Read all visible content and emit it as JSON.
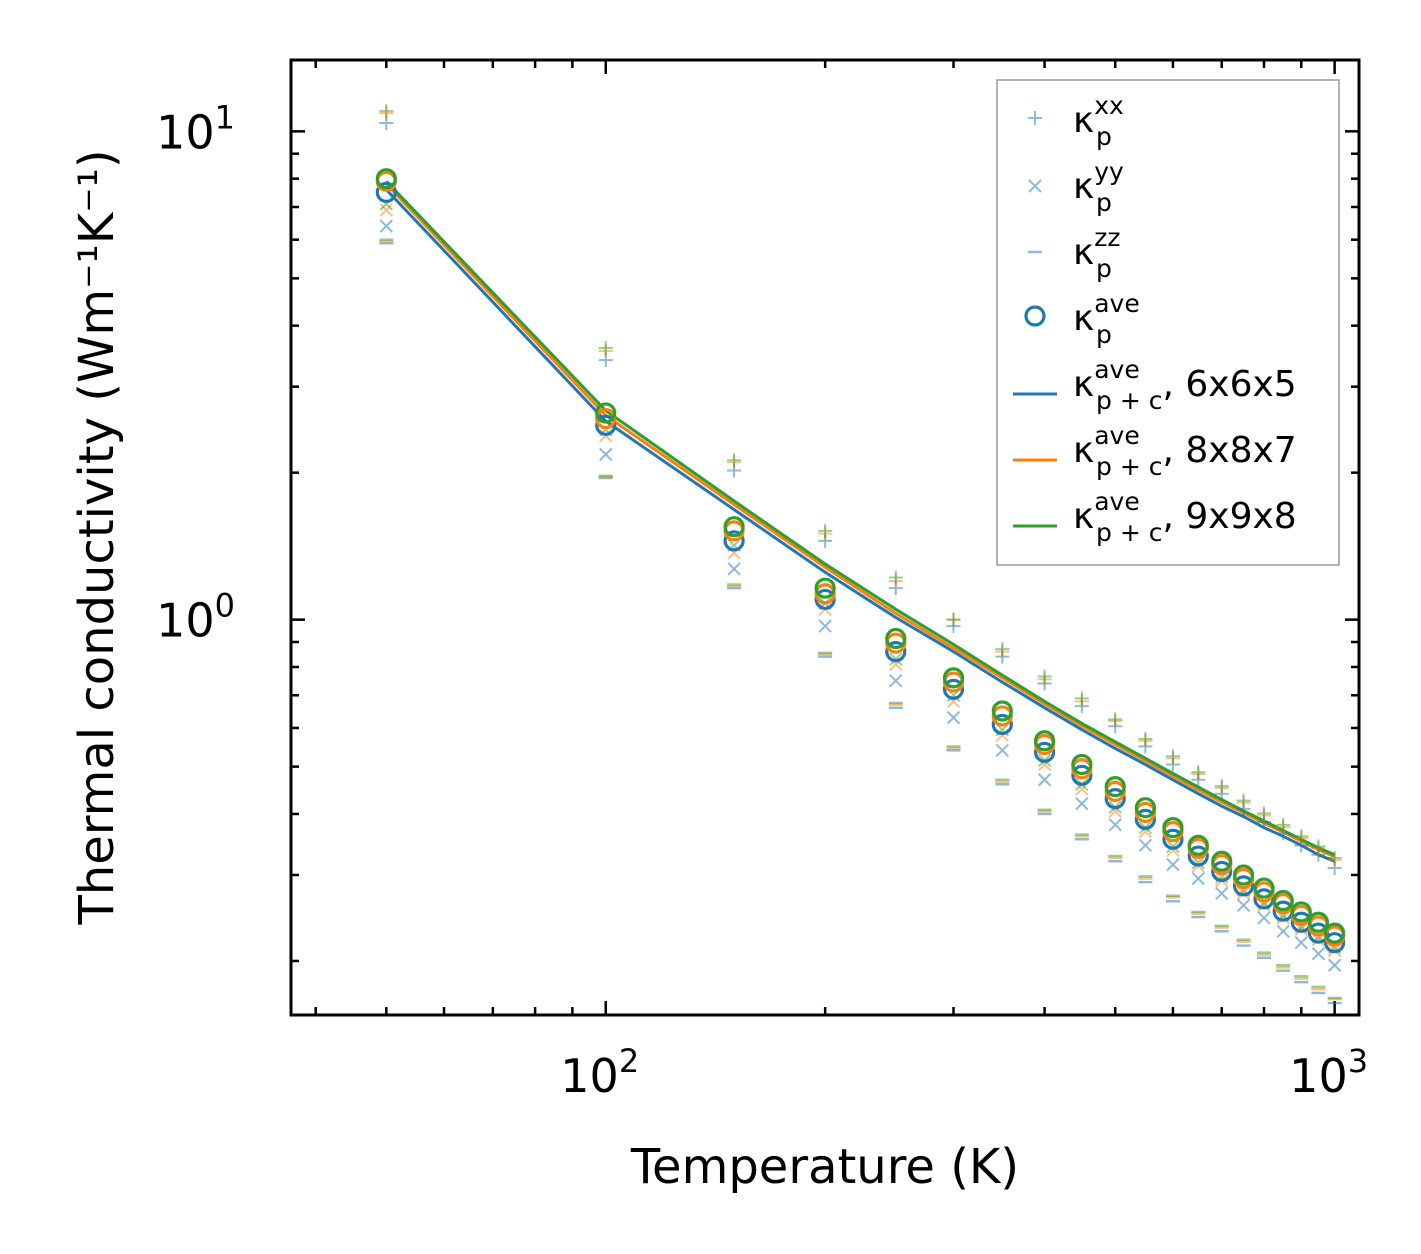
{
  "chart_data": {
    "type": "scatter",
    "xscale": "log",
    "yscale": "log",
    "xlim": [
      37,
      1080
    ],
    "ylim": [
      0.155,
      14
    ],
    "xlabel": "Temperature (K)",
    "ylabel": "Thermal conductivity (Wm⁻¹K⁻¹)",
    "xticks": [
      {
        "value": 100,
        "base": "10",
        "exp": "2"
      },
      {
        "value": 1000,
        "base": "10",
        "exp": "3"
      }
    ],
    "yticks": [
      {
        "value": 1,
        "base": "10",
        "exp": "0"
      },
      {
        "value": 10,
        "base": "10",
        "exp": "1"
      }
    ],
    "x": [
      50,
      100,
      150,
      200,
      250,
      300,
      350,
      400,
      450,
      500,
      550,
      600,
      650,
      700,
      750,
      800,
      850,
      900,
      950,
      1000
    ],
    "supercells": [
      {
        "name": "6x6x5",
        "color": "#1f77b4",
        "kxx": [
          10.4,
          3.4,
          2.02,
          1.45,
          1.16,
          0.97,
          0.84,
          0.74,
          0.665,
          0.605,
          0.55,
          0.505,
          0.47,
          0.44,
          0.41,
          0.385,
          0.365,
          0.345,
          0.33,
          0.31
        ],
        "kyy": [
          6.4,
          2.18,
          1.27,
          0.97,
          0.75,
          0.63,
          0.54,
          0.47,
          0.42,
          0.38,
          0.345,
          0.315,
          0.295,
          0.275,
          0.26,
          0.245,
          0.23,
          0.218,
          0.207,
          0.196
        ],
        "kzz": [
          5.9,
          1.95,
          1.16,
          0.84,
          0.66,
          0.54,
          0.46,
          0.4,
          0.355,
          0.32,
          0.29,
          0.265,
          0.246,
          0.23,
          0.215,
          0.203,
          0.191,
          0.181,
          0.172,
          0.164
        ],
        "kave": [
          7.5,
          2.5,
          1.45,
          1.1,
          0.86,
          0.72,
          0.61,
          0.535,
          0.48,
          0.43,
          0.39,
          0.355,
          0.328,
          0.305,
          0.285,
          0.268,
          0.253,
          0.24,
          0.228,
          0.218
        ],
        "kpc": [
          7.6,
          2.55,
          1.68,
          1.25,
          1.01,
          0.86,
          0.745,
          0.66,
          0.595,
          0.545,
          0.505,
          0.47,
          0.44,
          0.415,
          0.395,
          0.375,
          0.36,
          0.345,
          0.33,
          0.32
        ]
      },
      {
        "name": "8x8x7",
        "color": "#ff7f0e",
        "kxx": [
          10.9,
          3.55,
          2.1,
          1.5,
          1.2,
          1.0,
          0.86,
          0.755,
          0.68,
          0.62,
          0.565,
          0.52,
          0.483,
          0.452,
          0.422,
          0.397,
          0.376,
          0.357,
          0.34,
          0.322
        ],
        "kyy": [
          6.9,
          2.38,
          1.37,
          1.05,
          0.81,
          0.68,
          0.58,
          0.505,
          0.45,
          0.405,
          0.368,
          0.337,
          0.313,
          0.292,
          0.275,
          0.26,
          0.245,
          0.232,
          0.221,
          0.21
        ],
        "kzz": [
          5.95,
          1.96,
          1.17,
          0.85,
          0.67,
          0.545,
          0.465,
          0.405,
          0.36,
          0.325,
          0.295,
          0.27,
          0.25,
          0.234,
          0.219,
          0.206,
          0.194,
          0.184,
          0.175,
          0.167
        ],
        "kave": [
          7.9,
          2.58,
          1.52,
          1.13,
          0.895,
          0.745,
          0.635,
          0.555,
          0.495,
          0.445,
          0.403,
          0.368,
          0.34,
          0.315,
          0.295,
          0.277,
          0.262,
          0.248,
          0.236,
          0.225
        ],
        "kpc": [
          7.8,
          2.62,
          1.72,
          1.28,
          1.03,
          0.875,
          0.76,
          0.672,
          0.606,
          0.555,
          0.514,
          0.478,
          0.448,
          0.423,
          0.402,
          0.383,
          0.367,
          0.352,
          0.338,
          0.327
        ]
      },
      {
        "name": "9x9x8",
        "color": "#2ca02c",
        "kxx": [
          11.0,
          3.6,
          2.12,
          1.52,
          1.22,
          1.0,
          0.87,
          0.765,
          0.69,
          0.625,
          0.57,
          0.525,
          0.487,
          0.456,
          0.426,
          0.401,
          0.38,
          0.36,
          0.343,
          0.325
        ],
        "kyy": [
          7.1,
          2.45,
          1.42,
          1.08,
          0.83,
          0.7,
          0.595,
          0.515,
          0.46,
          0.413,
          0.375,
          0.343,
          0.318,
          0.297,
          0.279,
          0.263,
          0.248,
          0.235,
          0.224,
          0.213
        ],
        "kzz": [
          6.0,
          1.97,
          1.18,
          0.855,
          0.675,
          0.55,
          0.47,
          0.408,
          0.363,
          0.328,
          0.298,
          0.272,
          0.252,
          0.236,
          0.221,
          0.208,
          0.196,
          0.186,
          0.177,
          0.168
        ],
        "kave": [
          8.0,
          2.65,
          1.55,
          1.16,
          0.915,
          0.76,
          0.65,
          0.565,
          0.505,
          0.455,
          0.412,
          0.375,
          0.345,
          0.32,
          0.3,
          0.282,
          0.266,
          0.252,
          0.24,
          0.228
        ],
        "kpc": [
          7.9,
          2.68,
          1.75,
          1.3,
          1.05,
          0.89,
          0.77,
          0.68,
          0.613,
          0.562,
          0.52,
          0.484,
          0.454,
          0.428,
          0.406,
          0.387,
          0.37,
          0.355,
          0.341,
          0.33
        ]
      }
    ],
    "legend": {
      "position": "upper-right",
      "entries": [
        {
          "kind": "plus",
          "sym": "κ",
          "sub": "p",
          "sup": "xx",
          "suffix": "",
          "color": "#1f77b4"
        },
        {
          "kind": "cross",
          "sym": "κ",
          "sub": "p",
          "sup": "yy",
          "suffix": "",
          "color": "#1f77b4"
        },
        {
          "kind": "dash",
          "sym": "κ",
          "sub": "p",
          "sup": "zz",
          "suffix": "",
          "color": "#1f77b4"
        },
        {
          "kind": "circle",
          "sym": "κ",
          "sub": "p",
          "sup": "ave",
          "suffix": "",
          "color": "#1f77b4"
        },
        {
          "kind": "line",
          "sym": "κ",
          "sub": "p + c",
          "sup": "ave",
          "suffix": ", 6x6x5",
          "color": "#1f77b4"
        },
        {
          "kind": "line",
          "sym": "κ",
          "sub": "p + c",
          "sup": "ave",
          "suffix": ", 8x8x7",
          "color": "#ff7f0e"
        },
        {
          "kind": "line",
          "sym": "κ",
          "sub": "p + c",
          "sup": "ave",
          "suffix": ", 9x9x8",
          "color": "#2ca02c"
        }
      ]
    }
  }
}
